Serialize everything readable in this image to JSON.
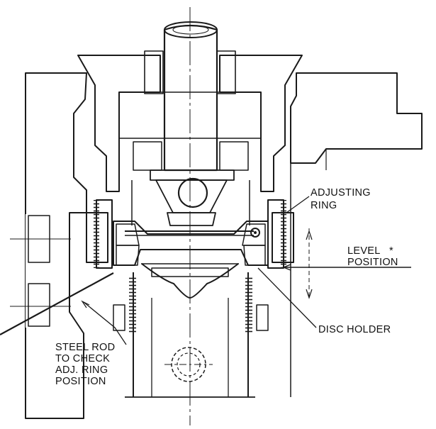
{
  "labels": {
    "adjusting_ring": [
      "ADJUSTING",
      "RING"
    ],
    "level_position": [
      "LEVEL",
      "POSITION"
    ],
    "level_marker": "*",
    "disc_holder": "DISC HOLDER",
    "steel_rod": [
      "STEEL ROD",
      "TO CHECK",
      "ADJ. RING",
      "POSITION"
    ]
  },
  "colors": {
    "ink": "#1a1a1a",
    "paper": "#ffffff"
  }
}
